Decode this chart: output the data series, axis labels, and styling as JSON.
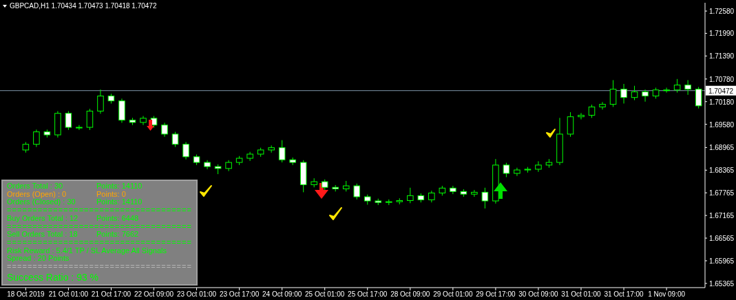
{
  "chart_data": {
    "type": "candlestick",
    "title": "GBPCAD,H1 1.70434 1.70473 1.70418 1.70472",
    "categories": [
      "18 Oct 2019",
      null,
      null,
      null,
      "21 Oct 01:00",
      null,
      null,
      null,
      "21 Oct 17:00",
      null,
      null,
      null,
      "22 Oct 09:00",
      null,
      null,
      null,
      "23 Oct 01:00",
      null,
      null,
      null,
      "23 Oct 17:00",
      null,
      null,
      null,
      "24 Oct 09:00",
      null,
      null,
      null,
      "25 Oct 01:00",
      null,
      null,
      null,
      "25 Oct 17:00",
      null,
      null,
      null,
      "28 Oct 09:00",
      null,
      null,
      null,
      "29 Oct 01:00",
      null,
      null,
      null,
      "29 Oct 17:00",
      null,
      null,
      null,
      "30 Oct 09:00",
      null,
      null,
      null,
      "31 Oct 01:00",
      null,
      null,
      null,
      "31 Oct 17:00",
      null,
      null,
      null,
      "1 Nov 09:00",
      null,
      null,
      null
    ],
    "ohlc": [
      [
        1.689,
        1.6911,
        1.6883,
        1.6905
      ],
      [
        1.6905,
        1.6944,
        1.6898,
        1.6938
      ],
      [
        1.6938,
        1.6944,
        1.6923,
        1.693
      ],
      [
        1.693,
        1.6993,
        1.6923,
        1.6987
      ],
      [
        1.6987,
        1.6993,
        1.6943,
        1.695
      ],
      [
        1.695,
        1.6956,
        1.6943,
        1.695
      ],
      [
        1.695,
        1.6999,
        1.6943,
        1.6993
      ],
      [
        1.6993,
        1.705,
        1.6986,
        1.7033
      ],
      [
        1.7033,
        1.7039,
        1.7013,
        1.702
      ],
      [
        1.702,
        1.7026,
        1.6962,
        1.6969
      ],
      [
        1.6969,
        1.6975,
        1.6956,
        1.6963
      ],
      [
        1.6963,
        1.698,
        1.6956,
        1.6974
      ],
      [
        1.6974,
        1.698,
        1.6949,
        1.6956
      ],
      [
        1.6956,
        1.6962,
        1.6925,
        1.6932
      ],
      [
        1.6932,
        1.6938,
        1.6898,
        1.6905
      ],
      [
        1.6905,
        1.6911,
        1.6865,
        1.6872
      ],
      [
        1.6872,
        1.6878,
        1.685,
        1.6857
      ],
      [
        1.6857,
        1.6863,
        1.6839,
        1.6846
      ],
      [
        1.6846,
        1.6852,
        1.6826,
        1.6841
      ],
      [
        1.6841,
        1.6863,
        1.6834,
        1.6857
      ],
      [
        1.6857,
        1.6874,
        1.685,
        1.6868
      ],
      [
        1.6868,
        1.6885,
        1.6861,
        1.6879
      ],
      [
        1.6879,
        1.6896,
        1.6872,
        1.689
      ],
      [
        1.689,
        1.6902,
        1.6883,
        1.6896
      ],
      [
        1.6896,
        1.6916,
        1.6857,
        1.6864
      ],
      [
        1.6864,
        1.687,
        1.685,
        1.6857
      ],
      [
        1.6857,
        1.6863,
        1.6778,
        1.6798
      ],
      [
        1.6798,
        1.6815,
        1.6791,
        1.6806
      ],
      [
        1.6806,
        1.6812,
        1.6784,
        1.6791
      ],
      [
        1.6791,
        1.6797,
        1.678,
        1.6787
      ],
      [
        1.6787,
        1.6808,
        1.678,
        1.6795
      ],
      [
        1.6795,
        1.6801,
        1.6759,
        1.6766
      ],
      [
        1.6766,
        1.6772,
        1.6745,
        1.6755
      ],
      [
        1.6755,
        1.6761,
        1.6744,
        1.6751
      ],
      [
        1.6751,
        1.6759,
        1.6744,
        1.6753
      ],
      [
        1.6753,
        1.6762,
        1.6746,
        1.6756
      ],
      [
        1.6756,
        1.679,
        1.6749,
        1.6769
      ],
      [
        1.6769,
        1.6775,
        1.6751,
        1.6758
      ],
      [
        1.6758,
        1.6782,
        1.6751,
        1.6776
      ],
      [
        1.6776,
        1.6795,
        1.6769,
        1.6789
      ],
      [
        1.6789,
        1.6795,
        1.6773,
        1.678
      ],
      [
        1.678,
        1.6786,
        1.6766,
        1.6773
      ],
      [
        1.6773,
        1.6784,
        1.6766,
        1.6778
      ],
      [
        1.6778,
        1.679,
        1.6735,
        1.6755
      ],
      [
        1.6755,
        1.6866,
        1.6748,
        1.685
      ],
      [
        1.685,
        1.6856,
        1.6818,
        1.6828
      ],
      [
        1.6828,
        1.6843,
        1.6821,
        1.6837
      ],
      [
        1.6837,
        1.6845,
        1.683,
        1.6839
      ],
      [
        1.6839,
        1.686,
        1.6832,
        1.685
      ],
      [
        1.685,
        1.6866,
        1.6843,
        1.6857
      ],
      [
        1.6857,
        1.6975,
        1.685,
        1.6932
      ],
      [
        1.6932,
        1.699,
        1.6925,
        1.6978
      ],
      [
        1.6978,
        1.6988,
        1.6971,
        1.6982
      ],
      [
        1.6982,
        1.701,
        1.6975,
        1.7004
      ],
      [
        1.7004,
        1.7017,
        1.6997,
        1.7011
      ],
      [
        1.7011,
        1.7075,
        1.7004,
        1.7051
      ],
      [
        1.7051,
        1.7065,
        1.7013,
        1.7029
      ],
      [
        1.7029,
        1.706,
        1.7022,
        1.7044
      ],
      [
        1.7044,
        1.705,
        1.7018,
        1.7033
      ],
      [
        1.7033,
        1.7055,
        1.7026,
        1.7049
      ],
      [
        1.7049,
        1.7055,
        1.7042,
        1.7049
      ],
      [
        1.7049,
        1.7078,
        1.7042,
        1.7062
      ],
      [
        1.7062,
        1.7075,
        1.7036,
        1.7051
      ],
      [
        1.7051,
        1.7057,
        1.7,
        1.7007
      ]
    ],
    "color": "#00ff00",
    "ylim": [
      1.6529,
      1.728
    ],
    "yticks": [
      {
        "value": 1.7258,
        "label": "1.72580"
      },
      {
        "value": 1.7199,
        "label": "1.71990"
      },
      {
        "value": 1.7139,
        "label": "1.71390"
      },
      {
        "value": 1.7078,
        "label": "1.70780"
      },
      {
        "value": 1.7018,
        "label": "1.70180"
      },
      {
        "value": 1.6958,
        "label": "1.69580"
      },
      1.68965,
      1.68365,
      1.67765,
      1.67165,
      1.66565,
      1.65965,
      1.65365
    ],
    "ref_lines": [
      {
        "axis": "y",
        "value": 1.70472,
        "label": "1.70472",
        "color": "#7f97ab"
      }
    ],
    "annotations": [
      "Orders Total : 30",
      "Points: 14110",
      "Orders (Open) : 0",
      "Points: 0",
      "Orders (Closed) : 30",
      "Points: 14110",
      "====================================",
      "Buy Orders Total : 12",
      "Points: 6448",
      "====================================",
      "Sell Orders Total : 18",
      "Points: 7662",
      "====================================",
      "Risk Reward : 5.4/1  TP / SL  Average All Signals",
      "Spread : 20 Points",
      "====================================",
      "Success Ratio : 93 %"
    ]
  }
}
